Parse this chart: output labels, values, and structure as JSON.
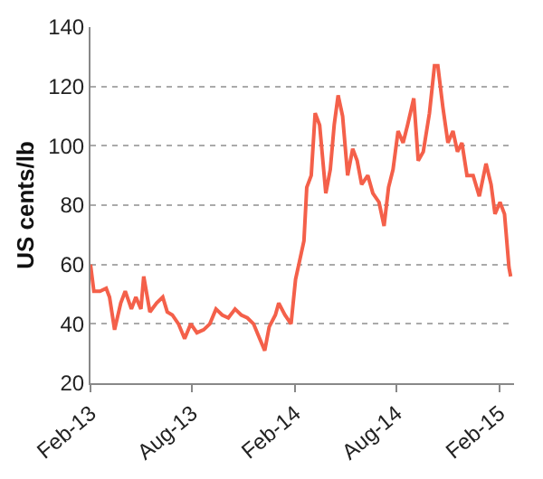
{
  "chart_data": {
    "type": "line",
    "ylabel": "US cents/lb",
    "ylim": [
      20,
      140
    ],
    "yticks": [
      20,
      40,
      60,
      80,
      100,
      120,
      140
    ],
    "xlim": [
      "2013-02-01",
      "2015-02-27"
    ],
    "xticks": [
      {
        "value": "2013-02-01",
        "label": "Feb-13"
      },
      {
        "value": "2013-08-01",
        "label": "Aug-13"
      },
      {
        "value": "2014-02-01",
        "label": "Feb-14"
      },
      {
        "value": "2014-08-01",
        "label": "Aug-14"
      },
      {
        "value": "2015-02-01",
        "label": "Feb-15"
      }
    ],
    "grid": "y",
    "legend": false,
    "marker": "none",
    "line_style": "solid",
    "series": [
      {
        "color": "#f4604a",
        "x": [
          "2013-02-01",
          "2013-02-07",
          "2013-02-18",
          "2013-03-01",
          "2013-03-07",
          "2013-03-16",
          "2013-03-27",
          "2013-04-04",
          "2013-04-15",
          "2013-04-23",
          "2013-05-02",
          "2013-05-07",
          "2013-05-18",
          "2013-05-30",
          "2013-06-10",
          "2013-06-18",
          "2013-06-27",
          "2013-07-08",
          "2013-07-19",
          "2013-07-30",
          "2013-08-10",
          "2013-08-22",
          "2013-09-02",
          "2013-09-13",
          "2013-09-24",
          "2013-10-05",
          "2013-10-17",
          "2013-10-28",
          "2013-11-08",
          "2013-11-19",
          "2013-11-30",
          "2013-12-09",
          "2013-12-17",
          "2013-12-28",
          "2014-01-03",
          "2014-01-14",
          "2014-01-25",
          "2014-02-02",
          "2014-02-09",
          "2014-02-17",
          "2014-02-22",
          "2014-03-02",
          "2014-03-09",
          "2014-03-17",
          "2014-03-28",
          "2014-04-05",
          "2014-04-12",
          "2014-04-19",
          "2014-04-27",
          "2014-05-06",
          "2014-05-15",
          "2014-05-23",
          "2014-05-31",
          "2014-06-11",
          "2014-06-20",
          "2014-07-01",
          "2014-07-10",
          "2014-07-18",
          "2014-07-26",
          "2014-08-04",
          "2014-08-13",
          "2014-08-21",
          "2014-09-01",
          "2014-09-09",
          "2014-09-18",
          "2014-09-29",
          "2014-10-08",
          "2014-10-14",
          "2014-10-23",
          "2014-11-01",
          "2014-11-10",
          "2014-11-18",
          "2014-11-26",
          "2014-12-05",
          "2014-12-16",
          "2014-12-27",
          "2015-01-08",
          "2015-01-17",
          "2015-01-24",
          "2015-02-02",
          "2015-02-10",
          "2015-02-18",
          "2015-02-21"
        ],
        "values": [
          60,
          51,
          51,
          52,
          49,
          38,
          47,
          51,
          45,
          49,
          45,
          56,
          44,
          47,
          49,
          44,
          43,
          40,
          35,
          40,
          37,
          38,
          40,
          45,
          43,
          42,
          45,
          43,
          42,
          40,
          35,
          31,
          39,
          43,
          47,
          43,
          40,
          55,
          61,
          68,
          86,
          90,
          111,
          107,
          84,
          92,
          107,
          117,
          110,
          90,
          99,
          95,
          87,
          90,
          84,
          81,
          73,
          86,
          92,
          105,
          101,
          107,
          116,
          95,
          98,
          111,
          127,
          127,
          113,
          101,
          105,
          98,
          101,
          90,
          90,
          83,
          94,
          87,
          77,
          81,
          77,
          59,
          56
        ]
      }
    ]
  }
}
